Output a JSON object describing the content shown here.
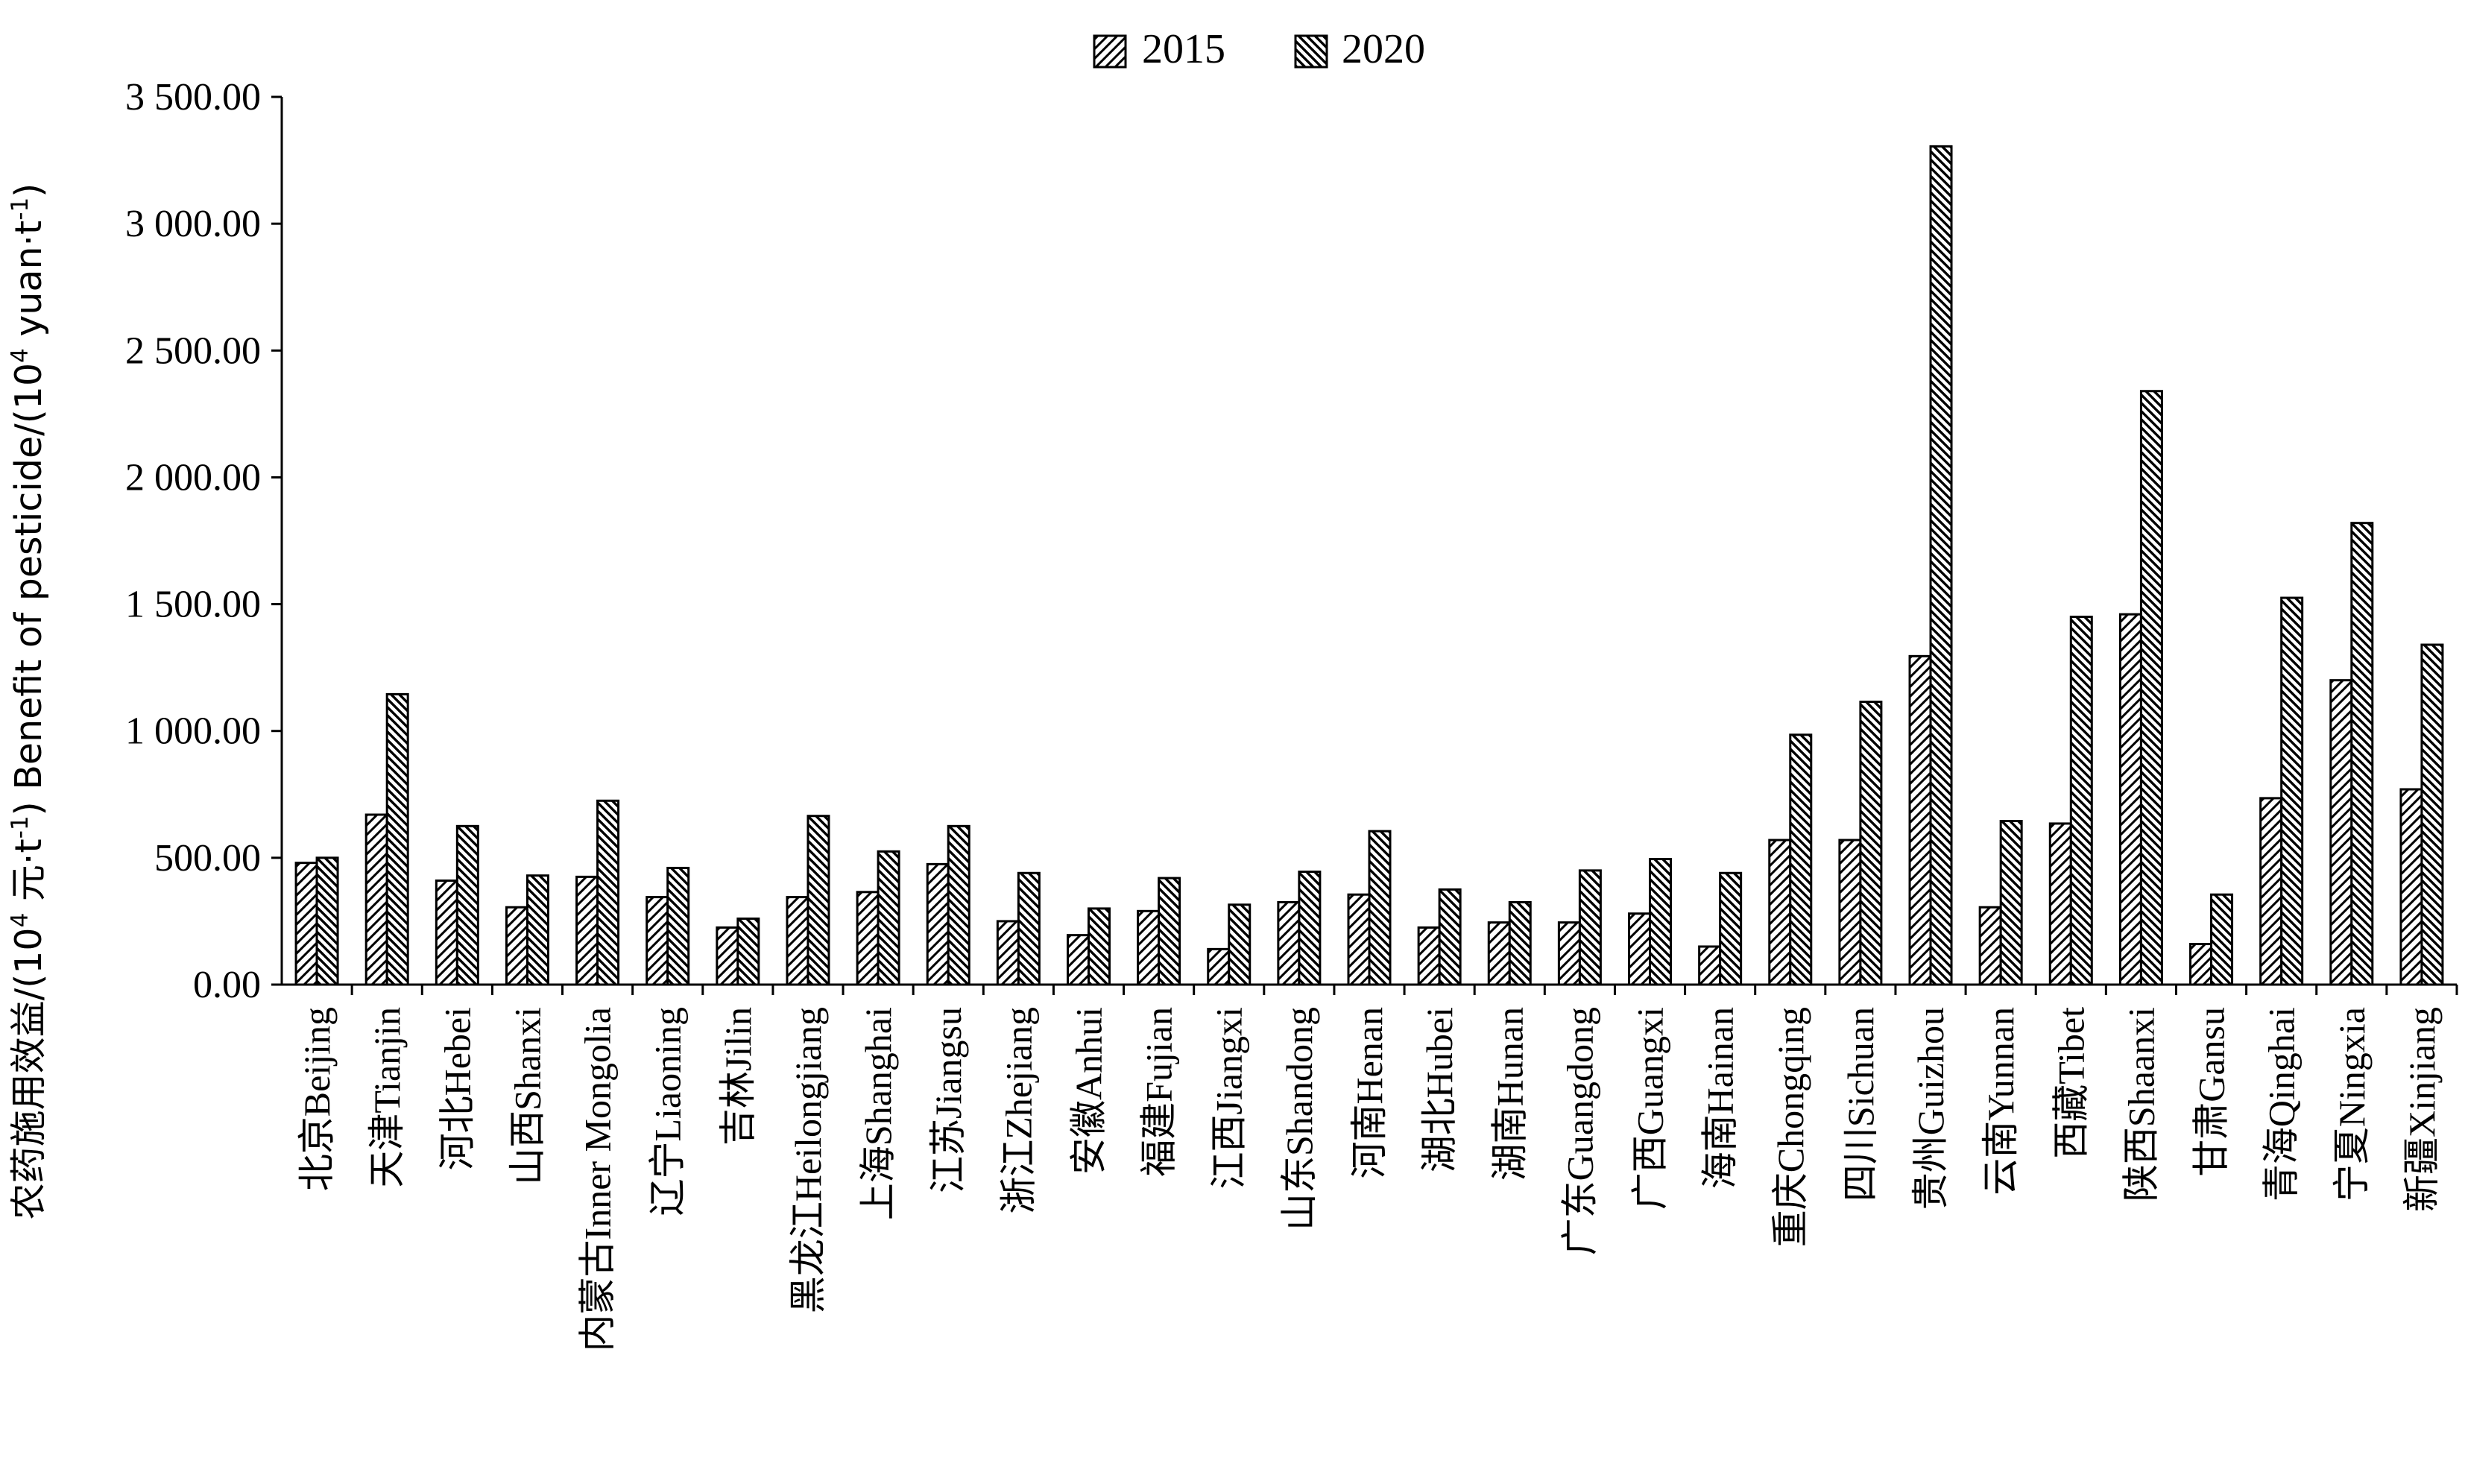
{
  "chart_data": {
    "type": "bar",
    "title": "",
    "xlabel": "",
    "ylabel_parts": {
      "prefix": "农药施用效益/(10",
      "sup1": "4",
      "mid1": " 元·t",
      "sup2": "-1",
      "mid2": ") Benefit of pesticide/(10",
      "sup3": "4",
      "mid3": " yuan·t",
      "sup4": "-1",
      "suffix": ")"
    },
    "ylim": [
      0,
      3500
    ],
    "ytick_values": [
      0,
      500,
      1000,
      1500,
      2000,
      2500,
      3000,
      3500
    ],
    "ytick_labels": [
      "0.00",
      "500.00",
      "1 000.00",
      "1 500.00",
      "2 000.00",
      "2 500.00",
      "3 000.00",
      "3 500.00"
    ],
    "legend_position": "top-center",
    "categories": [
      "北京Beijing",
      "天津Tianjin",
      "河北Hebei",
      "山西Shanxi",
      "内蒙古Inner Mongolia",
      "辽宁Liaoning",
      "吉林Jilin",
      "黑龙江Heilongjiang",
      "上海Shanghai",
      "江苏Jiangsu",
      "浙江Zhejiang",
      "安徽Anhui",
      "福建Fujian",
      "江西Jiangxi",
      "山东Shandong",
      "河南Henan",
      "湖北Hubei",
      "湖南Hunan",
      "广东Guangdong",
      "广西Guangxi",
      "海南Hainan",
      "重庆Chongqing",
      "四川Sichuan",
      "贵州Guizhou",
      "云南Yunnan",
      "西藏Tibet",
      "陕西Shaanxi",
      "甘肃Gansu",
      "青海Qinghai",
      "宁夏Ningxia",
      "新疆Xinjiang"
    ],
    "series": [
      {
        "name": "2015",
        "pattern": "hatch-right",
        "values": [
          480,
          670,
          410,
          305,
          425,
          345,
          225,
          345,
          365,
          475,
          250,
          195,
          290,
          140,
          325,
          355,
          225,
          245,
          245,
          280,
          150,
          570,
          570,
          1295,
          305,
          635,
          1460,
          160,
          735,
          1200,
          770
        ]
      },
      {
        "name": "2020",
        "pattern": "hatch-left",
        "values": [
          500,
          1145,
          625,
          430,
          725,
          460,
          260,
          665,
          525,
          625,
          440,
          300,
          420,
          315,
          445,
          605,
          375,
          325,
          450,
          495,
          440,
          985,
          1115,
          3305,
          645,
          1450,
          2340,
          355,
          1525,
          1820,
          1340
        ]
      }
    ]
  }
}
